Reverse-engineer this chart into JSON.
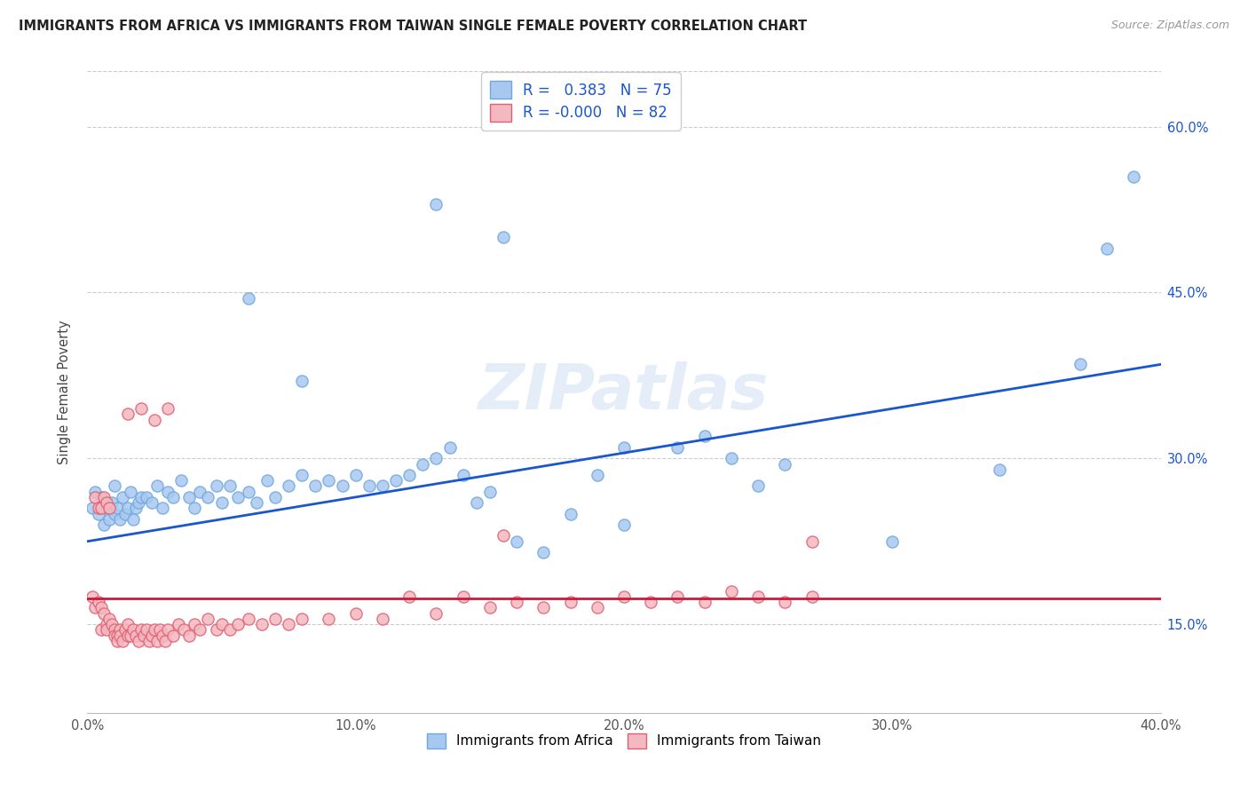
{
  "title": "IMMIGRANTS FROM AFRICA VS IMMIGRANTS FROM TAIWAN SINGLE FEMALE POVERTY CORRELATION CHART",
  "source": "Source: ZipAtlas.com",
  "ylabel": "Single Female Poverty",
  "xlim": [
    0.0,
    0.4
  ],
  "ylim": [
    0.07,
    0.65
  ],
  "africa_R": 0.383,
  "africa_N": 75,
  "taiwan_R": -0.0,
  "taiwan_N": 82,
  "africa_color_edge": "#6fa8dc",
  "africa_color_fill": "#a8c8f0",
  "taiwan_color_edge": "#e06070",
  "taiwan_color_fill": "#f4b8c0",
  "trendline_africa_color": "#1a56cc",
  "trendline_taiwan_color": "#cc1a3a",
  "trendline_africa_start": 0.225,
  "trendline_africa_end": 0.385,
  "trendline_taiwan_start": 0.173,
  "trendline_taiwan_end": 0.173,
  "watermark": "ZIPatlas",
  "africa_x": [
    0.002,
    0.003,
    0.004,
    0.005,
    0.006,
    0.007,
    0.008,
    0.009,
    0.01,
    0.01,
    0.011,
    0.012,
    0.013,
    0.014,
    0.015,
    0.016,
    0.017,
    0.018,
    0.019,
    0.02,
    0.022,
    0.024,
    0.026,
    0.028,
    0.03,
    0.032,
    0.035,
    0.038,
    0.04,
    0.042,
    0.045,
    0.048,
    0.05,
    0.053,
    0.056,
    0.06,
    0.063,
    0.067,
    0.07,
    0.075,
    0.08,
    0.085,
    0.09,
    0.095,
    0.1,
    0.105,
    0.11,
    0.115,
    0.12,
    0.125,
    0.13,
    0.135,
    0.14,
    0.145,
    0.15,
    0.16,
    0.17,
    0.18,
    0.19,
    0.2,
    0.22,
    0.24,
    0.26,
    0.3,
    0.34,
    0.37,
    0.06,
    0.08,
    0.13,
    0.155,
    0.2,
    0.23,
    0.25,
    0.38,
    0.39
  ],
  "africa_y": [
    0.255,
    0.27,
    0.25,
    0.265,
    0.24,
    0.255,
    0.245,
    0.26,
    0.25,
    0.275,
    0.255,
    0.245,
    0.265,
    0.25,
    0.255,
    0.27,
    0.245,
    0.255,
    0.26,
    0.265,
    0.265,
    0.26,
    0.275,
    0.255,
    0.27,
    0.265,
    0.28,
    0.265,
    0.255,
    0.27,
    0.265,
    0.275,
    0.26,
    0.275,
    0.265,
    0.27,
    0.26,
    0.28,
    0.265,
    0.275,
    0.285,
    0.275,
    0.28,
    0.275,
    0.285,
    0.275,
    0.275,
    0.28,
    0.285,
    0.295,
    0.3,
    0.31,
    0.285,
    0.26,
    0.27,
    0.225,
    0.215,
    0.25,
    0.285,
    0.24,
    0.31,
    0.3,
    0.295,
    0.225,
    0.29,
    0.385,
    0.445,
    0.37,
    0.53,
    0.5,
    0.31,
    0.32,
    0.275,
    0.49,
    0.555
  ],
  "taiwan_x": [
    0.002,
    0.003,
    0.004,
    0.005,
    0.005,
    0.006,
    0.007,
    0.007,
    0.008,
    0.009,
    0.01,
    0.01,
    0.011,
    0.011,
    0.012,
    0.012,
    0.013,
    0.014,
    0.015,
    0.015,
    0.016,
    0.017,
    0.018,
    0.019,
    0.02,
    0.021,
    0.022,
    0.023,
    0.024,
    0.025,
    0.026,
    0.027,
    0.028,
    0.029,
    0.03,
    0.032,
    0.034,
    0.036,
    0.038,
    0.04,
    0.042,
    0.045,
    0.048,
    0.05,
    0.053,
    0.056,
    0.06,
    0.065,
    0.07,
    0.075,
    0.08,
    0.09,
    0.1,
    0.11,
    0.12,
    0.13,
    0.14,
    0.15,
    0.16,
    0.17,
    0.18,
    0.19,
    0.2,
    0.21,
    0.22,
    0.23,
    0.24,
    0.25,
    0.26,
    0.27,
    0.003,
    0.004,
    0.005,
    0.006,
    0.007,
    0.008,
    0.015,
    0.02,
    0.025,
    0.03,
    0.155,
    0.27
  ],
  "taiwan_y": [
    0.175,
    0.165,
    0.17,
    0.165,
    0.145,
    0.16,
    0.15,
    0.145,
    0.155,
    0.15,
    0.145,
    0.14,
    0.14,
    0.135,
    0.145,
    0.14,
    0.135,
    0.145,
    0.14,
    0.15,
    0.14,
    0.145,
    0.14,
    0.135,
    0.145,
    0.14,
    0.145,
    0.135,
    0.14,
    0.145,
    0.135,
    0.145,
    0.14,
    0.135,
    0.145,
    0.14,
    0.15,
    0.145,
    0.14,
    0.15,
    0.145,
    0.155,
    0.145,
    0.15,
    0.145,
    0.15,
    0.155,
    0.15,
    0.155,
    0.15,
    0.155,
    0.155,
    0.16,
    0.155,
    0.175,
    0.16,
    0.175,
    0.165,
    0.17,
    0.165,
    0.17,
    0.165,
    0.175,
    0.17,
    0.175,
    0.17,
    0.18,
    0.175,
    0.17,
    0.175,
    0.265,
    0.255,
    0.255,
    0.265,
    0.26,
    0.255,
    0.34,
    0.345,
    0.335,
    0.345,
    0.23,
    0.225
  ],
  "x_ticks": [
    0.0,
    0.1,
    0.2,
    0.3,
    0.4
  ],
  "y_ticks": [
    0.15,
    0.3,
    0.45,
    0.6
  ],
  "legend_text_color": "#1a56cc"
}
